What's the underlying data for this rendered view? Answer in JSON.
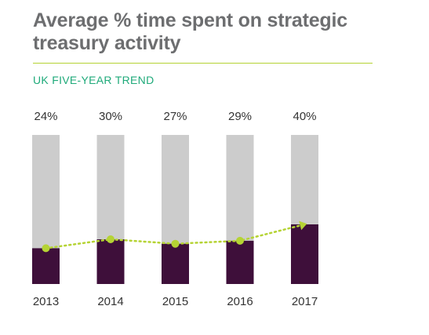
{
  "header": {
    "title": "Average % time spent on strategic treasury activity",
    "subtitle": "UK FIVE-YEAR TREND"
  },
  "colors": {
    "title": "#6d6e70",
    "accent_line": "#b5d334",
    "subtitle": "#1faa7a",
    "bar_fill": "#3e0f3a",
    "bar_background": "#cccccc",
    "trend": "#b5d334"
  },
  "chart_data": {
    "type": "bar",
    "title": "Average % time spent on strategic treasury activity",
    "subtitle": "UK FIVE-YEAR TREND",
    "categories": [
      "2013",
      "2014",
      "2015",
      "2016",
      "2017"
    ],
    "values": [
      24,
      30,
      27,
      29,
      40
    ],
    "value_labels": [
      "24%",
      "30%",
      "27%",
      "29%",
      "40%"
    ],
    "ylim": [
      0,
      100
    ],
    "unit": "%",
    "trend_line": {
      "style": "dotted",
      "arrow": "end",
      "follows": "values"
    },
    "grid": false,
    "legend": "none"
  }
}
